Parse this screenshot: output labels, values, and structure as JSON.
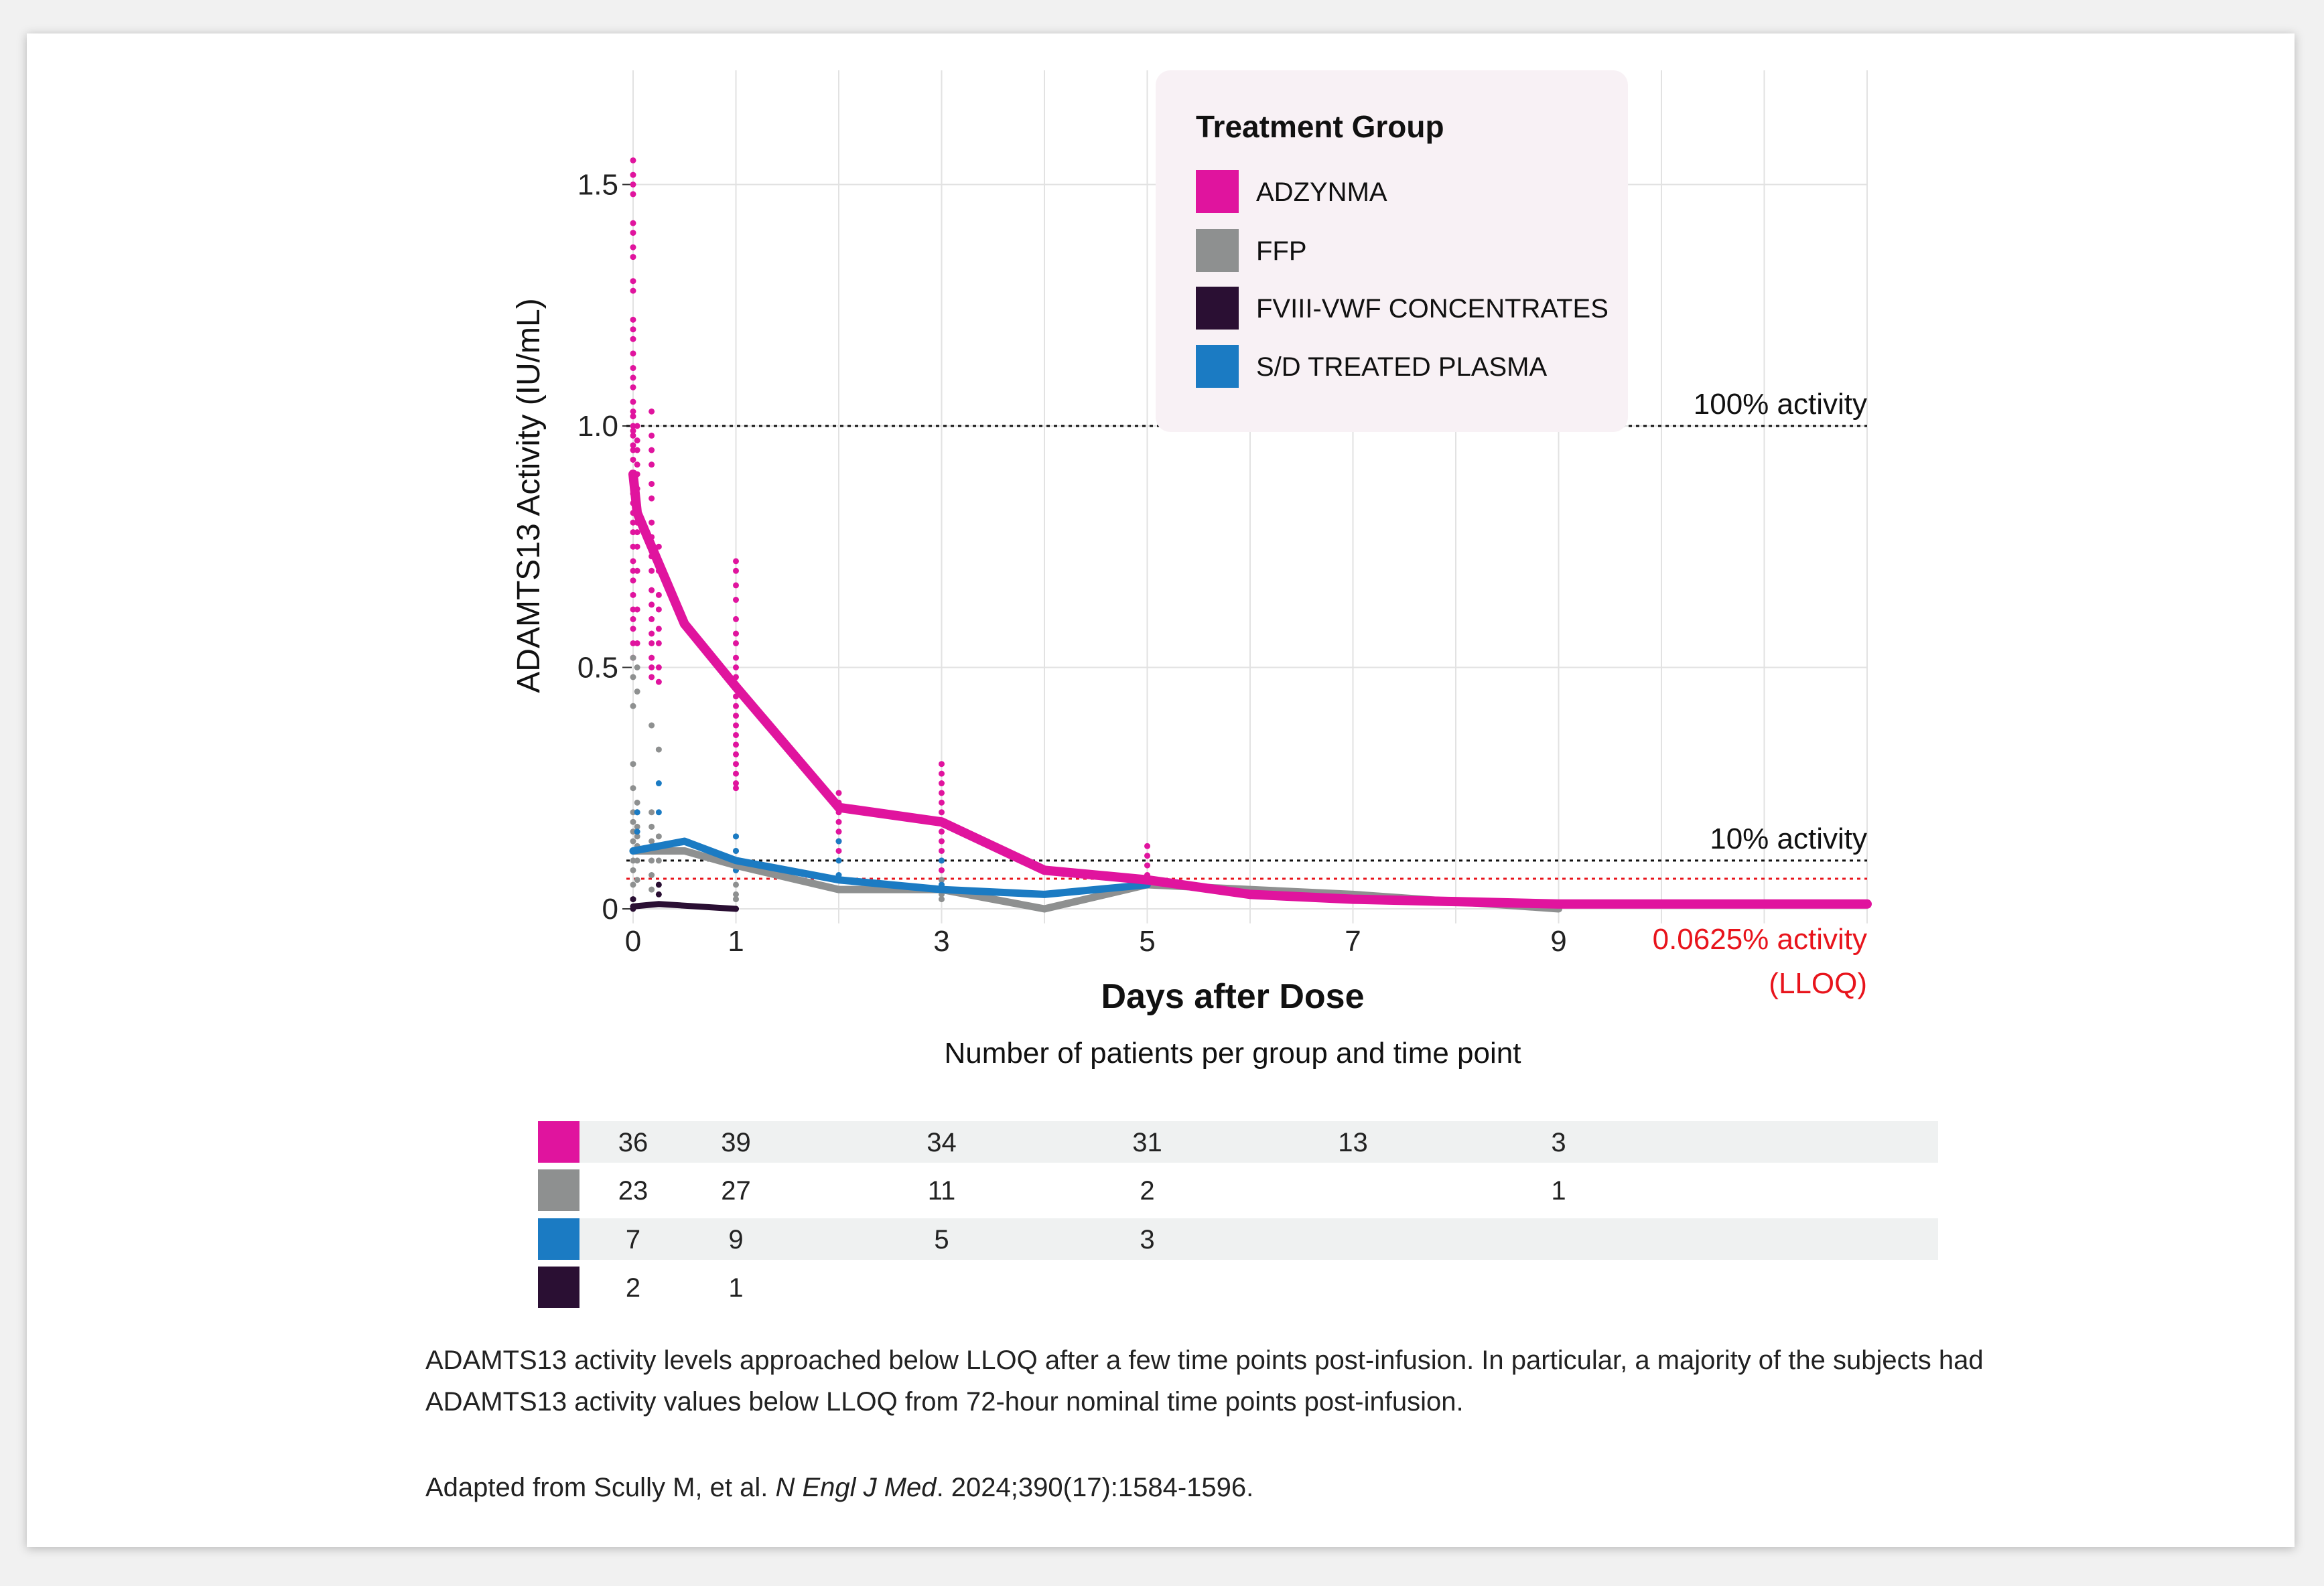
{
  "chart_data": {
    "type": "line",
    "xlabel": "Days after Dose",
    "ylabel": "ADAMTS13 Activity (IU/mL)",
    "xlim": [
      0,
      12
    ],
    "ylim": [
      -0.03,
      1.75
    ],
    "x_ticks": [
      0,
      1,
      3,
      5,
      7,
      9
    ],
    "x_tick_labels": [
      "0",
      "1",
      "3",
      "5",
      "7",
      "9"
    ],
    "y_ticks": [
      0,
      0.5,
      1.0,
      1.5
    ],
    "y_tick_labels": [
      "0",
      "0.5",
      "1.0",
      "1.5"
    ],
    "legend": {
      "title": "Treatment Group",
      "position": "top-right"
    },
    "series": [
      {
        "name": "ADZYNMA",
        "color": "#e0149e",
        "x": [
          0,
          0.04,
          0.5,
          1,
          2,
          3,
          4,
          5,
          6,
          7,
          8,
          9,
          10,
          11,
          12
        ],
        "y": [
          0.9,
          0.82,
          0.59,
          0.46,
          0.21,
          0.18,
          0.08,
          0.06,
          0.03,
          0.02,
          0.015,
          0.01,
          0.01,
          0.01,
          0.01
        ]
      },
      {
        "name": "FFP",
        "color": "#8e9090",
        "x": [
          0,
          0.5,
          1,
          2,
          3,
          4,
          5,
          7,
          9
        ],
        "y": [
          0.12,
          0.12,
          0.09,
          0.04,
          0.04,
          0.0,
          0.05,
          0.03,
          0.0
        ]
      },
      {
        "name": "FVIII-VWF CONCENTRATES",
        "color": "#2a0f33",
        "x": [
          0,
          0.25,
          1
        ],
        "y": [
          0.005,
          0.01,
          0.0
        ]
      },
      {
        "name": "S/D TREATED PLASMA",
        "color": "#1b7bc3",
        "x": [
          0,
          0.5,
          1,
          2,
          3,
          4,
          5
        ],
        "y": [
          0.12,
          0.14,
          0.1,
          0.06,
          0.04,
          0.03,
          0.05
        ]
      }
    ],
    "reference_lines": [
      {
        "label": "100% activity",
        "y": 1.0,
        "color": "#111111"
      },
      {
        "label": "10% activity",
        "y": 0.1,
        "color": "#111111"
      },
      {
        "label": "0.0625% activity",
        "label2": "(LLOQ)",
        "y": 0.0625,
        "color": "#e8141c"
      }
    ],
    "scatter": [
      {
        "series": "ADZYNMA",
        "x": 0,
        "y": [
          1.55,
          1.52,
          1.5,
          1.48,
          1.42,
          1.4,
          1.37,
          1.35,
          1.3,
          1.28,
          1.22,
          1.2,
          1.18,
          1.15,
          1.12,
          1.1,
          1.08,
          1.05,
          1.03,
          1.02,
          1.0,
          0.99,
          0.98,
          0.96,
          0.95,
          0.93,
          0.9,
          0.88,
          0.86,
          0.84,
          0.82,
          0.8,
          0.78,
          0.75,
          0.72,
          0.7,
          0.68,
          0.65,
          0.62,
          0.6,
          0.58,
          0.55,
          0.52
        ]
      },
      {
        "series": "ADZYNMA",
        "x": 0.04,
        "y": [
          1.0,
          0.97,
          0.95,
          0.92,
          0.9,
          0.87,
          0.85,
          0.8,
          0.78,
          0.75,
          0.7,
          0.62,
          0.55
        ]
      },
      {
        "series": "ADZYNMA",
        "x": 0.18,
        "y": [
          1.03,
          0.98,
          0.95,
          0.92,
          0.88,
          0.85,
          0.8,
          0.77,
          0.73,
          0.7,
          0.66,
          0.63,
          0.6,
          0.57,
          0.55,
          0.52,
          0.5,
          0.48
        ]
      },
      {
        "series": "ADZYNMA",
        "x": 0.25,
        "y": [
          0.75,
          0.7,
          0.65,
          0.62,
          0.58,
          0.55,
          0.5,
          0.47
        ]
      },
      {
        "series": "ADZYNMA",
        "x": 1,
        "y": [
          0.72,
          0.7,
          0.67,
          0.64,
          0.6,
          0.57,
          0.55,
          0.52,
          0.5,
          0.48,
          0.46,
          0.44,
          0.42,
          0.4,
          0.38,
          0.36,
          0.34,
          0.32,
          0.3,
          0.28,
          0.26,
          0.25
        ]
      },
      {
        "series": "ADZYNMA",
        "x": 2,
        "y": [
          0.24,
          0.22,
          0.2,
          0.18,
          0.16,
          0.14,
          0.12
        ]
      },
      {
        "series": "ADZYNMA",
        "x": 3,
        "y": [
          0.3,
          0.28,
          0.26,
          0.24,
          0.22,
          0.2,
          0.18,
          0.16,
          0.14,
          0.12,
          0.1,
          0.08,
          0.06
        ]
      },
      {
        "series": "ADZYNMA",
        "x": 5,
        "y": [
          0.13,
          0.11,
          0.09,
          0.07,
          0.05
        ]
      },
      {
        "series": "FFP",
        "x": 0,
        "y": [
          0.52,
          0.48,
          0.42,
          0.3,
          0.25,
          0.2,
          0.18,
          0.16,
          0.14,
          0.12,
          0.1,
          0.08,
          0.05,
          0.02
        ]
      },
      {
        "series": "FFP",
        "x": 0.04,
        "y": [
          0.5,
          0.45,
          0.22,
          0.2,
          0.17,
          0.15,
          0.13,
          0.1,
          0.06
        ]
      },
      {
        "series": "FFP",
        "x": 0.18,
        "y": [
          0.38,
          0.2,
          0.17,
          0.14,
          0.1,
          0.07,
          0.04
        ]
      },
      {
        "series": "FFP",
        "x": 0.25,
        "y": [
          0.33,
          0.15,
          0.1
        ]
      },
      {
        "series": "FFP",
        "x": 1,
        "y": [
          0.15,
          0.12,
          0.1,
          0.08,
          0.05,
          0.03,
          0.02
        ]
      },
      {
        "series": "FFP",
        "x": 3,
        "y": [
          0.06,
          0.05,
          0.04,
          0.03,
          0.02
        ]
      },
      {
        "series": "S/D TREATED PLASMA",
        "x": 0.04,
        "y": [
          0.2,
          0.16,
          0.12
        ]
      },
      {
        "series": "S/D TREATED PLASMA",
        "x": 0.25,
        "y": [
          0.26,
          0.2
        ]
      },
      {
        "series": "S/D TREATED PLASMA",
        "x": 1,
        "y": [
          0.15,
          0.12,
          0.08
        ]
      },
      {
        "series": "S/D TREATED PLASMA",
        "x": 2,
        "y": [
          0.14,
          0.1,
          0.07
        ]
      },
      {
        "series": "S/D TREATED PLASMA",
        "x": 3,
        "y": [
          0.1,
          0.05
        ]
      },
      {
        "series": "FVIII-VWF CONCENTRATES",
        "x": 0,
        "y": [
          0.02,
          0.0
        ]
      },
      {
        "series": "FVIII-VWF CONCENTRATES",
        "x": 0.25,
        "y": [
          0.05,
          0.03
        ]
      },
      {
        "series": "FVIII-VWF CONCENTRATES",
        "x": 1,
        "y": [
          0.0
        ]
      }
    ]
  },
  "patient_table": {
    "title": "Number of patients per group and time point",
    "rows": [
      {
        "series": "ADZYNMA",
        "color": "#e0149e",
        "cells": [
          {
            "x": 0,
            "value": "36"
          },
          {
            "x": 1,
            "value": "39"
          },
          {
            "x": 3,
            "value": "34"
          },
          {
            "x": 5,
            "value": "31"
          },
          {
            "x": 7,
            "value": "13"
          },
          {
            "x": 9,
            "value": "3"
          }
        ]
      },
      {
        "series": "FFP",
        "color": "#8e9090",
        "cells": [
          {
            "x": 0,
            "value": "23"
          },
          {
            "x": 1,
            "value": "27"
          },
          {
            "x": 3,
            "value": "11"
          },
          {
            "x": 5,
            "value": "2"
          },
          {
            "x": 9,
            "value": "1"
          }
        ]
      },
      {
        "series": "S/D TREATED PLASMA",
        "color": "#1b7bc3",
        "cells": [
          {
            "x": 0,
            "value": "7"
          },
          {
            "x": 1,
            "value": "9"
          },
          {
            "x": 3,
            "value": "5"
          },
          {
            "x": 5,
            "value": "3"
          }
        ]
      },
      {
        "series": "FVIII-VWF CONCENTRATES",
        "color": "#2a0f33",
        "cells": [
          {
            "x": 0,
            "value": "2"
          },
          {
            "x": 1,
            "value": "1"
          }
        ]
      }
    ]
  },
  "footnote": "ADAMTS13 activity levels approached below LLOQ after a few time points post-infusion. In particular, a majority of the subjects had ADAMTS13 activity values below LLOQ from 72-hour nominal time points post-infusion.",
  "citation": {
    "prefix": "Adapted from Scully M, et al.",
    "journal": "N Engl J Med",
    "suffix": ". 2024;390(17):1584-1596."
  }
}
